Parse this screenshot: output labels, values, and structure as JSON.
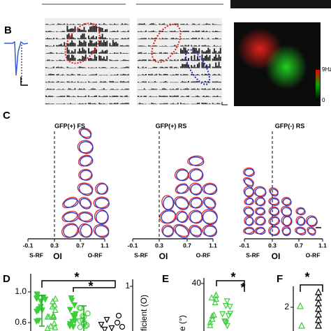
{
  "panels": {
    "B": {
      "label": "B",
      "colorbar": {
        "max": "9Hz",
        "min": "0"
      }
    },
    "C": {
      "label": "C",
      "plots": [
        {
          "title": "GFP(+) FS",
          "ticks": [
            "-0.1",
            "0.3",
            "0.7",
            "1.1"
          ],
          "left": "S-RF",
          "center": "OI",
          "right": "O-RF"
        },
        {
          "title": "GFP(+) RS",
          "ticks": [
            "-0.1",
            "0.3",
            "0.7",
            "1.1"
          ],
          "left": "S-RF",
          "center": "OI",
          "right": "O-RF"
        },
        {
          "title": "GFP(-) RS",
          "ticks": [
            "-0.1",
            "0.3",
            "0.7",
            "1.1"
          ],
          "left": "S-RF",
          "center": "OI",
          "right": "O-RF"
        }
      ]
    },
    "D": {
      "label": "D",
      "yticks": [
        "1.0",
        "0.6"
      ],
      "y2tick": "1",
      "y2label": "ficient (O)",
      "stars": [
        "*",
        "*"
      ]
    },
    "E": {
      "label": "E",
      "ytick": "40",
      "ylabel": "e (°)",
      "stars": [
        "*",
        "*"
      ]
    },
    "F": {
      "label": "F",
      "ytick": "2",
      "stars": [
        "*"
      ]
    }
  }
}
